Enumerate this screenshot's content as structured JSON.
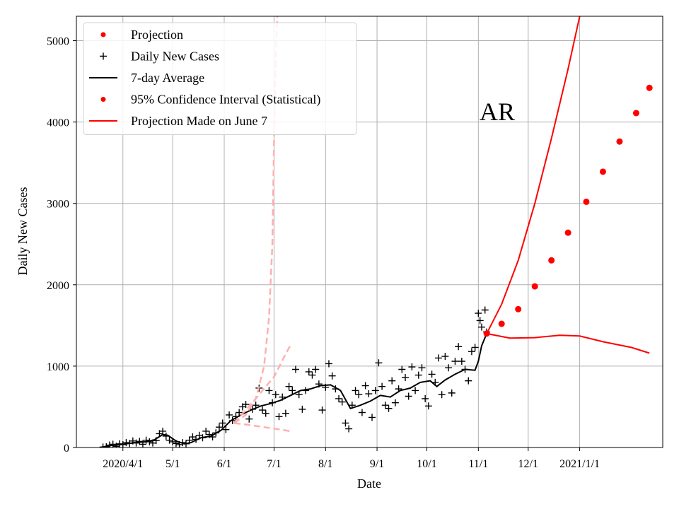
{
  "chart_data": {
    "type": "line",
    "title": "",
    "annotation": "AR",
    "xlabel": "Date",
    "ylabel": "Daily New Cases",
    "ylim": [
      0,
      5300
    ],
    "xlim": [
      "2020-03-04",
      "2021-02-20"
    ],
    "grid": true,
    "legend_position": "top-left",
    "xticks": [
      {
        "date": "2020-04-01",
        "label": "2020/4/1"
      },
      {
        "date": "2020-05-01",
        "label": "5/1"
      },
      {
        "date": "2020-06-01",
        "label": "6/1"
      },
      {
        "date": "2020-07-01",
        "label": "7/1"
      },
      {
        "date": "2020-08-01",
        "label": "8/1"
      },
      {
        "date": "2020-09-01",
        "label": "9/1"
      },
      {
        "date": "2020-10-01",
        "label": "10/1"
      },
      {
        "date": "2020-11-01",
        "label": "11/1"
      },
      {
        "date": "2020-12-01",
        "label": "12/1"
      },
      {
        "date": "2021-01-01",
        "label": "2021/1/1"
      }
    ],
    "yticks": [
      0,
      1000,
      2000,
      3000,
      4000,
      5000
    ],
    "legend": [
      {
        "label": "Projection",
        "marker": "dot",
        "color": "#ff0000"
      },
      {
        "label": "Daily New Cases",
        "marker": "plus",
        "color": "#000000"
      },
      {
        "label": "7-day Average",
        "marker": "line",
        "color": "#000000"
      },
      {
        "label": "95% Confidence Interval (Statistical)",
        "marker": "dot",
        "color": "#ff0000"
      },
      {
        "label": "Projection Made on June 7",
        "marker": "line",
        "color": "#ff0000"
      }
    ],
    "colors": {
      "projection": "#ff0000",
      "cases": "#000000",
      "june7": "#ffb0b0"
    },
    "series": [
      {
        "name": "Daily New Cases",
        "kind": "scatter",
        "points": [
          [
            "2020-03-20",
            5
          ],
          [
            "2020-03-22",
            10
          ],
          [
            "2020-03-24",
            30
          ],
          [
            "2020-03-26",
            40
          ],
          [
            "2020-03-28",
            15
          ],
          [
            "2020-03-30",
            45
          ],
          [
            "2020-04-01",
            35
          ],
          [
            "2020-04-03",
            60
          ],
          [
            "2020-04-05",
            50
          ],
          [
            "2020-04-07",
            80
          ],
          [
            "2020-04-09",
            55
          ],
          [
            "2020-04-11",
            75
          ],
          [
            "2020-04-13",
            40
          ],
          [
            "2020-04-15",
            90
          ],
          [
            "2020-04-17",
            70
          ],
          [
            "2020-04-19",
            55
          ],
          [
            "2020-04-21",
            85
          ],
          [
            "2020-04-23",
            170
          ],
          [
            "2020-04-25",
            200
          ],
          [
            "2020-04-27",
            140
          ],
          [
            "2020-04-29",
            90
          ],
          [
            "2020-05-01",
            70
          ],
          [
            "2020-05-03",
            50
          ],
          [
            "2020-05-05",
            35
          ],
          [
            "2020-05-07",
            60
          ],
          [
            "2020-05-09",
            45
          ],
          [
            "2020-05-11",
            90
          ],
          [
            "2020-05-13",
            130
          ],
          [
            "2020-05-15",
            100
          ],
          [
            "2020-05-17",
            150
          ],
          [
            "2020-05-19",
            120
          ],
          [
            "2020-05-21",
            200
          ],
          [
            "2020-05-23",
            160
          ],
          [
            "2020-05-25",
            130
          ],
          [
            "2020-05-27",
            180
          ],
          [
            "2020-05-29",
            250
          ],
          [
            "2020-05-31",
            300
          ],
          [
            "2020-06-02",
            220
          ],
          [
            "2020-06-04",
            400
          ],
          [
            "2020-06-06",
            330
          ],
          [
            "2020-06-08",
            380
          ],
          [
            "2020-06-10",
            430
          ],
          [
            "2020-06-12",
            500
          ],
          [
            "2020-06-14",
            530
          ],
          [
            "2020-06-16",
            350
          ],
          [
            "2020-06-18",
            470
          ],
          [
            "2020-06-20",
            520
          ],
          [
            "2020-06-22",
            730
          ],
          [
            "2020-06-24",
            460
          ],
          [
            "2020-06-26",
            420
          ],
          [
            "2020-06-28",
            700
          ],
          [
            "2020-06-30",
            550
          ],
          [
            "2020-07-02",
            650
          ],
          [
            "2020-07-04",
            380
          ],
          [
            "2020-07-06",
            620
          ],
          [
            "2020-07-08",
            420
          ],
          [
            "2020-07-10",
            750
          ],
          [
            "2020-07-12",
            700
          ],
          [
            "2020-07-14",
            960
          ],
          [
            "2020-07-16",
            650
          ],
          [
            "2020-07-18",
            470
          ],
          [
            "2020-07-20",
            700
          ],
          [
            "2020-07-22",
            930
          ],
          [
            "2020-07-24",
            890
          ],
          [
            "2020-07-26",
            960
          ],
          [
            "2020-07-28",
            780
          ],
          [
            "2020-07-30",
            460
          ],
          [
            "2020-08-01",
            740
          ],
          [
            "2020-08-03",
            1030
          ],
          [
            "2020-08-05",
            880
          ],
          [
            "2020-08-07",
            720
          ],
          [
            "2020-08-09",
            600
          ],
          [
            "2020-08-11",
            560
          ],
          [
            "2020-08-13",
            300
          ],
          [
            "2020-08-15",
            230
          ],
          [
            "2020-08-17",
            520
          ],
          [
            "2020-08-19",
            700
          ],
          [
            "2020-08-21",
            650
          ],
          [
            "2020-08-23",
            430
          ],
          [
            "2020-08-25",
            760
          ],
          [
            "2020-08-27",
            660
          ],
          [
            "2020-08-29",
            370
          ],
          [
            "2020-08-31",
            700
          ],
          [
            "2020-09-02",
            1040
          ],
          [
            "2020-09-04",
            750
          ],
          [
            "2020-09-06",
            520
          ],
          [
            "2020-09-08",
            480
          ],
          [
            "2020-09-10",
            820
          ],
          [
            "2020-09-12",
            550
          ],
          [
            "2020-09-14",
            720
          ],
          [
            "2020-09-16",
            960
          ],
          [
            "2020-09-18",
            860
          ],
          [
            "2020-09-20",
            630
          ],
          [
            "2020-09-22",
            990
          ],
          [
            "2020-09-24",
            700
          ],
          [
            "2020-09-26",
            890
          ],
          [
            "2020-09-28",
            980
          ],
          [
            "2020-09-30",
            600
          ],
          [
            "2020-10-02",
            510
          ],
          [
            "2020-10-04",
            900
          ],
          [
            "2020-10-06",
            800
          ],
          [
            "2020-10-08",
            1100
          ],
          [
            "2020-10-10",
            650
          ],
          [
            "2020-10-12",
            1120
          ],
          [
            "2020-10-14",
            980
          ],
          [
            "2020-10-16",
            670
          ],
          [
            "2020-10-18",
            1060
          ],
          [
            "2020-10-20",
            1240
          ],
          [
            "2020-10-22",
            1060
          ],
          [
            "2020-10-24",
            960
          ],
          [
            "2020-10-26",
            820
          ],
          [
            "2020-10-28",
            1180
          ],
          [
            "2020-10-30",
            1230
          ],
          [
            "2020-11-01",
            1650
          ],
          [
            "2020-11-02",
            1560
          ],
          [
            "2020-11-03",
            1480
          ],
          [
            "2020-11-05",
            1690
          ],
          [
            "2020-11-06",
            1420
          ]
        ]
      },
      {
        "name": "7-day Average",
        "kind": "line",
        "points": [
          [
            "2020-03-18",
            0
          ],
          [
            "2020-03-25",
            25
          ],
          [
            "2020-04-01",
            40
          ],
          [
            "2020-04-08",
            60
          ],
          [
            "2020-04-15",
            70
          ],
          [
            "2020-04-20",
            95
          ],
          [
            "2020-04-25",
            160
          ],
          [
            "2020-04-28",
            150
          ],
          [
            "2020-05-03",
            80
          ],
          [
            "2020-05-08",
            45
          ],
          [
            "2020-05-12",
            60
          ],
          [
            "2020-05-18",
            120
          ],
          [
            "2020-05-24",
            140
          ],
          [
            "2020-05-30",
            210
          ],
          [
            "2020-06-05",
            330
          ],
          [
            "2020-06-11",
            400
          ],
          [
            "2020-06-17",
            460
          ],
          [
            "2020-06-23",
            510
          ],
          [
            "2020-06-29",
            540
          ],
          [
            "2020-07-05",
            580
          ],
          [
            "2020-07-11",
            640
          ],
          [
            "2020-07-17",
            700
          ],
          [
            "2020-07-23",
            720
          ],
          [
            "2020-07-29",
            760
          ],
          [
            "2020-08-04",
            770
          ],
          [
            "2020-08-10",
            700
          ],
          [
            "2020-08-16",
            480
          ],
          [
            "2020-08-22",
            520
          ],
          [
            "2020-08-28",
            570
          ],
          [
            "2020-09-03",
            640
          ],
          [
            "2020-09-09",
            620
          ],
          [
            "2020-09-15",
            700
          ],
          [
            "2020-09-21",
            730
          ],
          [
            "2020-09-27",
            800
          ],
          [
            "2020-10-03",
            820
          ],
          [
            "2020-10-07",
            750
          ],
          [
            "2020-10-12",
            830
          ],
          [
            "2020-10-18",
            900
          ],
          [
            "2020-10-24",
            960
          ],
          [
            "2020-10-30",
            950
          ],
          [
            "2020-11-01",
            1060
          ],
          [
            "2020-11-03",
            1250
          ],
          [
            "2020-11-06",
            1400
          ]
        ]
      },
      {
        "name": "Projection",
        "kind": "dots",
        "points": [
          [
            "2020-11-06",
            1400
          ],
          [
            "2020-11-15",
            1520
          ],
          [
            "2020-11-25",
            1700
          ],
          [
            "2020-12-05",
            1980
          ],
          [
            "2020-12-15",
            2300
          ],
          [
            "2020-12-25",
            2640
          ],
          [
            "2021-01-05",
            3020
          ],
          [
            "2021-01-15",
            3390
          ],
          [
            "2021-01-25",
            3760
          ],
          [
            "2021-02-04",
            4110
          ],
          [
            "2021-02-12",
            4420
          ]
        ]
      },
      {
        "name": "95% Confidence Interval (Statistical) upper",
        "kind": "line",
        "points": [
          [
            "2020-11-06",
            1400
          ],
          [
            "2020-11-15",
            1760
          ],
          [
            "2020-11-25",
            2300
          ],
          [
            "2020-12-05",
            3000
          ],
          [
            "2020-12-15",
            3800
          ],
          [
            "2020-12-25",
            4650
          ],
          [
            "2021-01-01",
            5300
          ]
        ]
      },
      {
        "name": "95% Confidence Interval (Statistical) lower",
        "kind": "line",
        "points": [
          [
            "2020-11-06",
            1400
          ],
          [
            "2020-11-20",
            1345
          ],
          [
            "2020-12-05",
            1350
          ],
          [
            "2020-12-20",
            1380
          ],
          [
            "2021-01-01",
            1370
          ],
          [
            "2021-01-15",
            1300
          ],
          [
            "2021-02-01",
            1230
          ],
          [
            "2021-02-12",
            1160
          ]
        ]
      },
      {
        "name": "Projection Made on June 7",
        "kind": "dashed",
        "points": [
          [
            "2020-06-07",
            300
          ],
          [
            "2020-06-14",
            400
          ],
          [
            "2020-06-20",
            600
          ],
          [
            "2020-06-25",
            1000
          ],
          [
            "2020-06-28",
            1600
          ],
          [
            "2020-06-30",
            2500
          ],
          [
            "2020-07-01",
            3800
          ],
          [
            "2020-07-02",
            4800
          ],
          [
            "2020-07-03",
            5300
          ]
        ]
      },
      {
        "name": "Projection Made on June 7 (band upper)",
        "kind": "dashed",
        "points": [
          [
            "2020-06-07",
            300
          ],
          [
            "2020-06-20",
            600
          ],
          [
            "2020-07-01",
            870
          ],
          [
            "2020-07-08",
            1150
          ],
          [
            "2020-07-11",
            1260
          ]
        ]
      },
      {
        "name": "Projection Made on June 7 (band lower)",
        "kind": "dashed",
        "points": [
          [
            "2020-06-07",
            300
          ],
          [
            "2020-06-15",
            280
          ],
          [
            "2020-06-25",
            250
          ],
          [
            "2020-07-05",
            220
          ],
          [
            "2020-07-11",
            200
          ]
        ]
      }
    ]
  }
}
